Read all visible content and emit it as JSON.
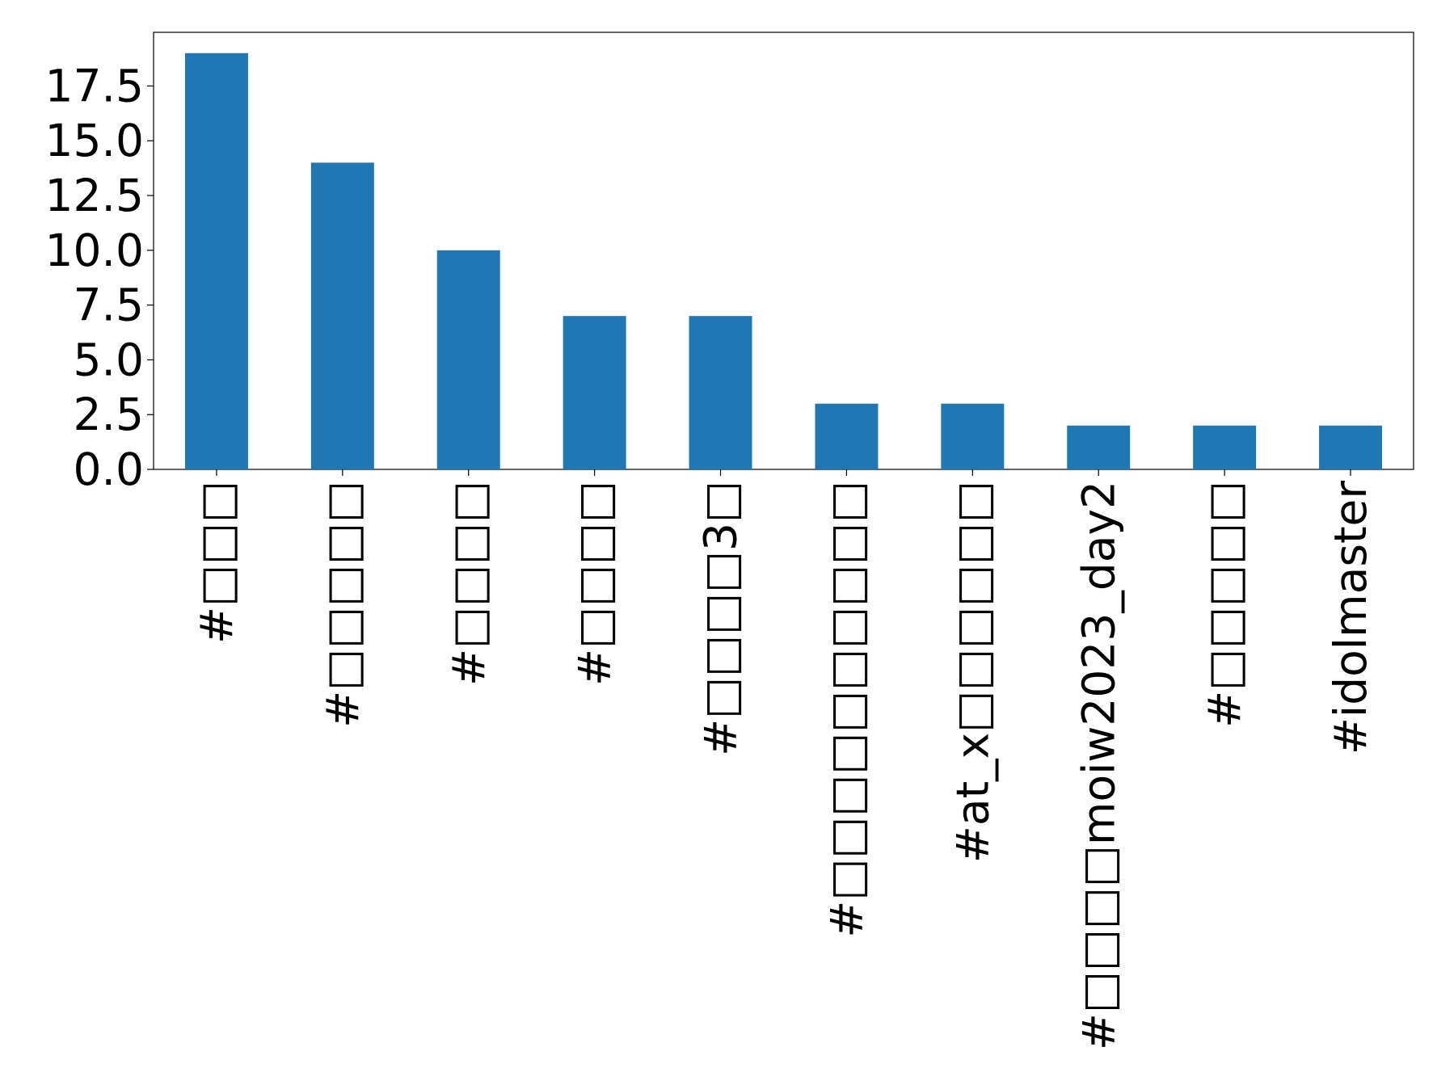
{
  "chart_data": {
    "type": "bar",
    "categories": [
      "#□□□",
      "#□□□□□",
      "#□□□□",
      "#□□□□",
      "#□□□□3□",
      "#□□□□□□□□□□",
      "#at_x□□□□□□",
      "#□□□□moiw2023_day2",
      "#□□□□□",
      "#idolmaster"
    ],
    "values": [
      19,
      14,
      10,
      7,
      7,
      3,
      3,
      2,
      2,
      2
    ],
    "color": "#1f77b4",
    "ylim": [
      0,
      19.95
    ],
    "yticks": [
      {
        "value": 0,
        "label": "0.0"
      },
      2.5,
      {
        "value": 5,
        "label": "5.0"
      },
      7.5,
      {
        "value": 10,
        "label": "10.0"
      },
      12.5,
      {
        "value": 15,
        "label": "15.0"
      },
      17.5
    ],
    "grid": false
  }
}
